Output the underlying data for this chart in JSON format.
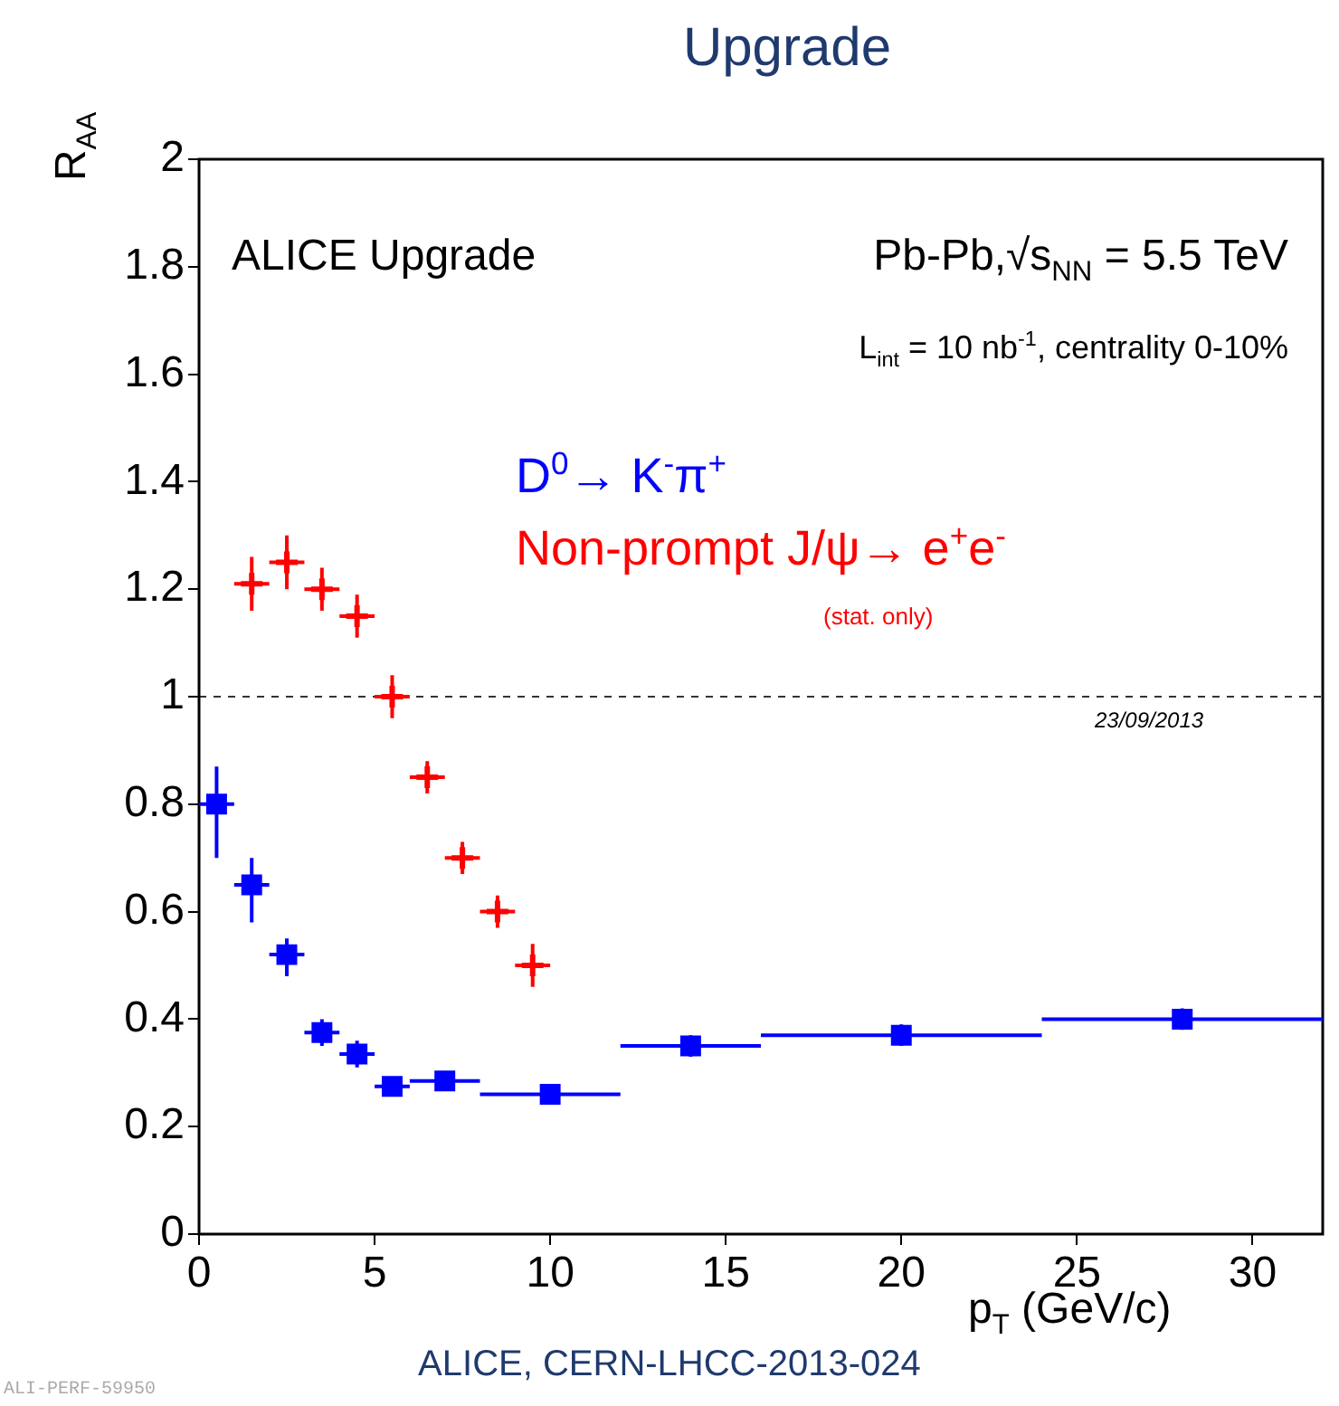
{
  "chart_data": {
    "type": "scatter",
    "title": "Upgrade",
    "xlabel": "p$_{T}$ (GeV/c)",
    "ylabel": "R$_{AA}$",
    "xlim": [
      0,
      32
    ],
    "xticks": [
      0,
      5,
      10,
      15,
      20,
      25,
      30
    ],
    "ylim": [
      0,
      2
    ],
    "yticks": [
      0,
      0.2,
      0.4,
      0.6,
      0.8,
      1,
      1.2,
      1.4,
      1.6,
      1.8,
      2
    ],
    "ref_lines": [
      {
        "axis": "y",
        "value": 1,
        "line_style": "dashed",
        "color": "#333333"
      }
    ],
    "annotations": [
      "ALICE Upgrade",
      "Pb-Pb,√s$_{NN}$ = 5.5 TeV",
      "L$_{int}$ = 10 nb$^{-1}$, centrality 0-10%",
      "(stat. only)",
      "23/09/2013",
      "ALICE, CERN-LHCC-2013-024",
      "ALI-PERF-59950"
    ],
    "series": [
      {
        "name": "D$^{0}$→ K$^{-}$π$^{+}$",
        "color": "#0000ff",
        "marker": "square",
        "x": [
          0.5,
          1.5,
          2.5,
          3.5,
          4.5,
          5.5,
          7,
          10,
          14,
          20,
          28
        ],
        "values": [
          0.8,
          0.65,
          0.52,
          0.375,
          0.335,
          0.275,
          0.285,
          0.26,
          0.35,
          0.37,
          0.4
        ],
        "errors": [
          [
            0.7,
            0.87
          ],
          [
            0.58,
            0.7
          ],
          [
            0.48,
            0.55
          ],
          [
            0.35,
            0.4
          ],
          [
            0.31,
            0.36
          ],
          [
            0.26,
            0.29
          ],
          [
            0.27,
            0.3
          ],
          [
            0.25,
            0.27
          ],
          [
            0.33,
            0.37
          ],
          [
            0.35,
            0.39
          ],
          [
            0.38,
            0.42
          ]
        ],
        "xerrors": [
          0.5,
          0.5,
          0.5,
          0.5,
          0.5,
          0.5,
          1,
          2,
          2,
          4,
          4
        ]
      },
      {
        "name": "Non-prompt J/ψ→ e$^{+}$e$^{-}$",
        "color": "#ff0000",
        "marker": "cross",
        "x": [
          1.5,
          2.5,
          3.5,
          4.5,
          5.5,
          6.5,
          7.5,
          8.5,
          9.5
        ],
        "values": [
          1.21,
          1.25,
          1.2,
          1.15,
          1.0,
          0.85,
          0.7,
          0.6,
          0.5
        ],
        "errors": [
          0.05,
          0.05,
          0.04,
          0.04,
          0.04,
          0.03,
          0.03,
          0.03,
          0.04
        ],
        "xerrors": [
          0.5,
          0.5,
          0.5,
          0.5,
          0.5,
          0.5,
          0.5,
          0.5,
          0.5
        ]
      }
    ]
  }
}
